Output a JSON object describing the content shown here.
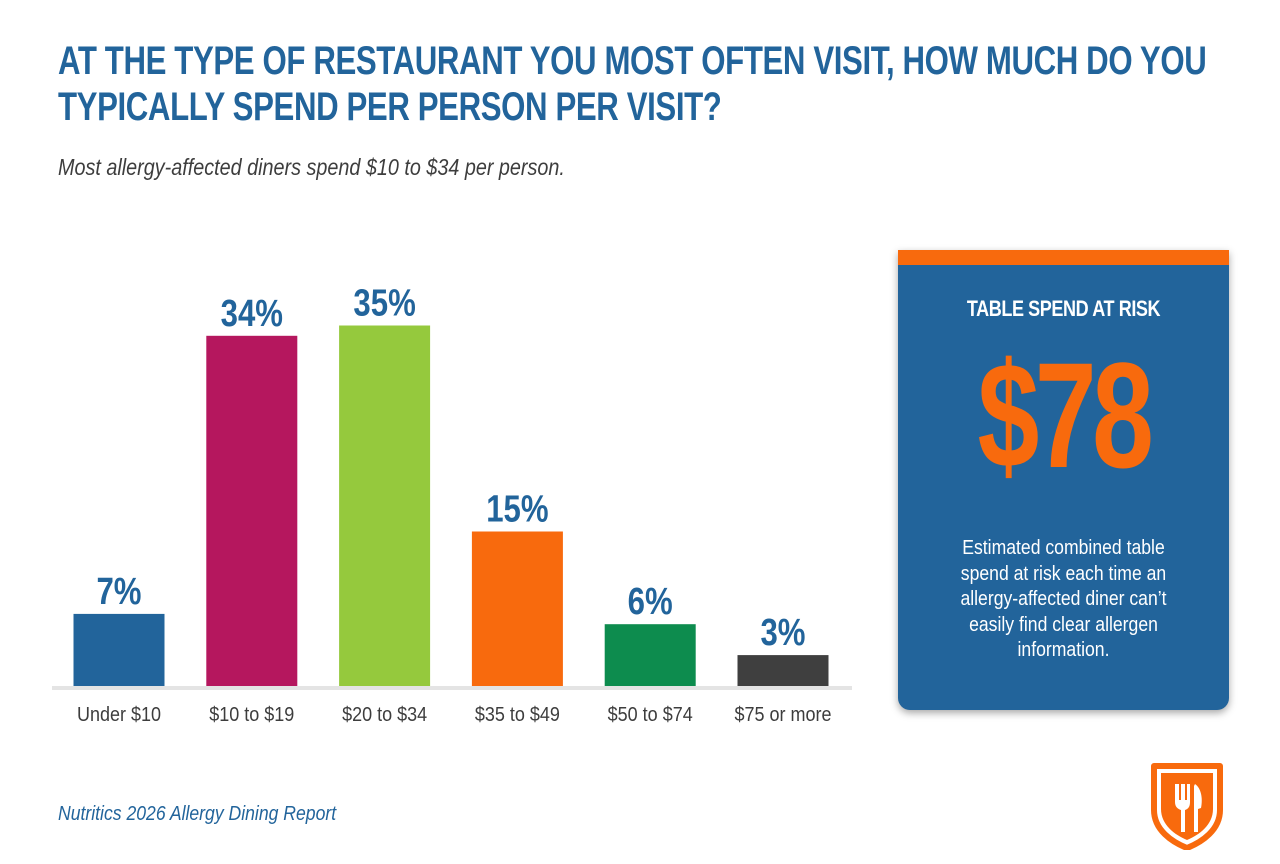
{
  "title": "AT THE TYPE OF RESTAURANT YOU MOST OFTEN VISIT, HOW MUCH DO YOU TYPICALLY SPEND PER PERSON PER VISIT?",
  "subtitle": "Most allergy-affected diners spend $10 to $34 per person.",
  "chart_data": {
    "type": "bar",
    "categories": [
      "Under $10",
      "$10 to $19",
      "$20 to $34",
      "$35 to $49",
      "$50 to $74",
      "$75 or more"
    ],
    "values": [
      7,
      34,
      35,
      15,
      6,
      3
    ],
    "value_labels": [
      "7%",
      "34%",
      "35%",
      "15%",
      "6%",
      "3%"
    ],
    "colors": [
      "#22649b",
      "#b5175e",
      "#95c93d",
      "#f86a0d",
      "#0d8c4e",
      "#3f3f3f"
    ],
    "ylim": [
      0,
      35
    ],
    "grid": false,
    "legend": "none"
  },
  "panel": {
    "heading": "TABLE SPEND AT RISK",
    "value": "$78",
    "text": "Estimated combined table spend at risk each time an allergy-affected diner can’t easily find clear allergen information.",
    "background_color": "#22649b",
    "accent_color": "#f86a0d"
  },
  "footer": "Nutritics 2026 Allergy Dining Report",
  "logo": {
    "icon": "shield-fork-knife-icon",
    "color": "#f86a0d"
  }
}
